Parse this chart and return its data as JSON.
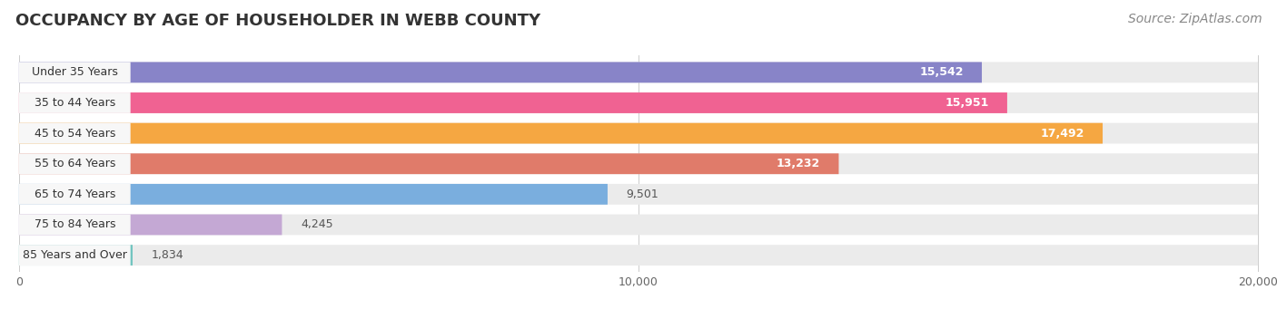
{
  "title": "OCCUPANCY BY AGE OF HOUSEHOLDER IN WEBB COUNTY",
  "source": "Source: ZipAtlas.com",
  "categories": [
    "Under 35 Years",
    "35 to 44 Years",
    "45 to 54 Years",
    "55 to 64 Years",
    "65 to 74 Years",
    "75 to 84 Years",
    "85 Years and Over"
  ],
  "values": [
    15542,
    15951,
    17492,
    13232,
    9501,
    4245,
    1834
  ],
  "bar_colors": [
    "#8884c8",
    "#f06292",
    "#f5a742",
    "#e07b6a",
    "#7aaede",
    "#c4a8d4",
    "#72c5c0"
  ],
  "xlim": [
    0,
    20000
  ],
  "xticks": [
    0,
    10000,
    20000
  ],
  "xtick_labels": [
    "0",
    "10,000",
    "20,000"
  ],
  "title_fontsize": 13,
  "source_fontsize": 10,
  "label_fontsize": 9,
  "value_fontsize": 9,
  "background_color": "#ffffff",
  "bar_bg_color": "#ebebeb",
  "label_bg_color": "#f7f7f7"
}
